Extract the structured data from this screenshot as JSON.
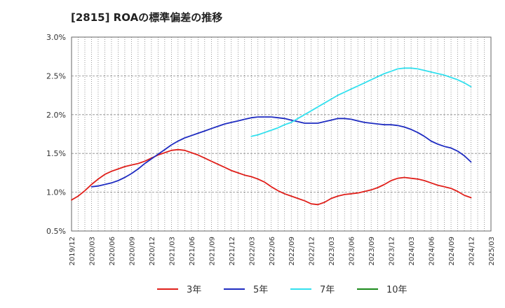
{
  "chart_data": {
    "type": "line",
    "title": "[2815]  ROAの標準偏差の推移",
    "xlabel": "",
    "ylabel": "",
    "ylim": [
      0.5,
      3.0
    ],
    "y_ticks": [
      "0.5%",
      "1.0%",
      "1.5%",
      "2.0%",
      "2.5%",
      "3.0%"
    ],
    "y_tick_values": [
      0.5,
      1.0,
      1.5,
      2.0,
      2.5,
      3.0
    ],
    "x_ticks": [
      "2019/12",
      "2020/03",
      "2020/06",
      "2020/09",
      "2020/12",
      "2021/03",
      "2021/06",
      "2021/09",
      "2021/12",
      "2022/03",
      "2022/06",
      "2022/09",
      "2022/12",
      "2023/03",
      "2023/06",
      "2023/09",
      "2023/12",
      "2024/03",
      "2024/06",
      "2024/09",
      "2024/12",
      "2025/03"
    ],
    "x_range": [
      "2019/12",
      "2025/03"
    ],
    "grid": true,
    "legend_position": "bottom",
    "series": [
      {
        "name": "3年",
        "color": "#e0201b",
        "points": [
          [
            "2019/12",
            0.9
          ],
          [
            "2020/01",
            0.95
          ],
          [
            "2020/02",
            1.02
          ],
          [
            "2020/03",
            1.1
          ],
          [
            "2020/04",
            1.17
          ],
          [
            "2020/05",
            1.23
          ],
          [
            "2020/06",
            1.27
          ],
          [
            "2020/07",
            1.3
          ],
          [
            "2020/08",
            1.33
          ],
          [
            "2020/09",
            1.35
          ],
          [
            "2020/10",
            1.37
          ],
          [
            "2020/11",
            1.4
          ],
          [
            "2020/12",
            1.44
          ],
          [
            "2021/01",
            1.48
          ],
          [
            "2021/02",
            1.51
          ],
          [
            "2021/03",
            1.54
          ],
          [
            "2021/04",
            1.55
          ],
          [
            "2021/05",
            1.54
          ],
          [
            "2021/06",
            1.51
          ],
          [
            "2021/07",
            1.48
          ],
          [
            "2021/08",
            1.44
          ],
          [
            "2021/09",
            1.4
          ],
          [
            "2021/10",
            1.36
          ],
          [
            "2021/11",
            1.32
          ],
          [
            "2021/12",
            1.28
          ],
          [
            "2022/01",
            1.25
          ],
          [
            "2022/02",
            1.22
          ],
          [
            "2022/03",
            1.2
          ],
          [
            "2022/04",
            1.17
          ],
          [
            "2022/05",
            1.13
          ],
          [
            "2022/06",
            1.07
          ],
          [
            "2022/07",
            1.02
          ],
          [
            "2022/08",
            0.98
          ],
          [
            "2022/09",
            0.95
          ],
          [
            "2022/10",
            0.92
          ],
          [
            "2022/11",
            0.89
          ],
          [
            "2022/12",
            0.85
          ],
          [
            "2023/01",
            0.84
          ],
          [
            "2023/02",
            0.87
          ],
          [
            "2023/03",
            0.92
          ],
          [
            "2023/04",
            0.95
          ],
          [
            "2023/05",
            0.97
          ],
          [
            "2023/06",
            0.98
          ],
          [
            "2023/07",
            0.99
          ],
          [
            "2023/08",
            1.01
          ],
          [
            "2023/09",
            1.03
          ],
          [
            "2023/10",
            1.06
          ],
          [
            "2023/11",
            1.1
          ],
          [
            "2023/12",
            1.15
          ],
          [
            "2024/01",
            1.18
          ],
          [
            "2024/02",
            1.19
          ],
          [
            "2024/03",
            1.18
          ],
          [
            "2024/04",
            1.17
          ],
          [
            "2024/05",
            1.15
          ],
          [
            "2024/06",
            1.12
          ],
          [
            "2024/07",
            1.09
          ],
          [
            "2024/08",
            1.07
          ],
          [
            "2024/09",
            1.05
          ],
          [
            "2024/10",
            1.01
          ],
          [
            "2024/11",
            0.96
          ],
          [
            "2024/12",
            0.93
          ]
        ]
      },
      {
        "name": "5年",
        "color": "#1f2cc1",
        "points": [
          [
            "2020/03",
            1.07
          ],
          [
            "2020/04",
            1.08
          ],
          [
            "2020/05",
            1.1
          ],
          [
            "2020/06",
            1.12
          ],
          [
            "2020/07",
            1.15
          ],
          [
            "2020/08",
            1.19
          ],
          [
            "2020/09",
            1.24
          ],
          [
            "2020/10",
            1.3
          ],
          [
            "2020/11",
            1.37
          ],
          [
            "2020/12",
            1.43
          ],
          [
            "2021/01",
            1.49
          ],
          [
            "2021/02",
            1.55
          ],
          [
            "2021/03",
            1.61
          ],
          [
            "2021/04",
            1.66
          ],
          [
            "2021/05",
            1.7
          ],
          [
            "2021/06",
            1.73
          ],
          [
            "2021/07",
            1.76
          ],
          [
            "2021/08",
            1.79
          ],
          [
            "2021/09",
            1.82
          ],
          [
            "2021/10",
            1.85
          ],
          [
            "2021/11",
            1.88
          ],
          [
            "2021/12",
            1.9
          ],
          [
            "2022/01",
            1.92
          ],
          [
            "2022/02",
            1.94
          ],
          [
            "2022/03",
            1.96
          ],
          [
            "2022/04",
            1.97
          ],
          [
            "2022/05",
            1.97
          ],
          [
            "2022/06",
            1.97
          ],
          [
            "2022/07",
            1.96
          ],
          [
            "2022/08",
            1.95
          ],
          [
            "2022/09",
            1.93
          ],
          [
            "2022/10",
            1.91
          ],
          [
            "2022/11",
            1.89
          ],
          [
            "2022/12",
            1.89
          ],
          [
            "2023/01",
            1.89
          ],
          [
            "2023/02",
            1.91
          ],
          [
            "2023/03",
            1.93
          ],
          [
            "2023/04",
            1.95
          ],
          [
            "2023/05",
            1.95
          ],
          [
            "2023/06",
            1.94
          ],
          [
            "2023/07",
            1.92
          ],
          [
            "2023/08",
            1.9
          ],
          [
            "2023/09",
            1.89
          ],
          [
            "2023/10",
            1.88
          ],
          [
            "2023/11",
            1.87
          ],
          [
            "2023/12",
            1.87
          ],
          [
            "2024/01",
            1.86
          ],
          [
            "2024/02",
            1.84
          ],
          [
            "2024/03",
            1.81
          ],
          [
            "2024/04",
            1.77
          ],
          [
            "2024/05",
            1.72
          ],
          [
            "2024/06",
            1.66
          ],
          [
            "2024/07",
            1.62
          ],
          [
            "2024/08",
            1.59
          ],
          [
            "2024/09",
            1.57
          ],
          [
            "2024/10",
            1.53
          ],
          [
            "2024/11",
            1.47
          ],
          [
            "2024/12",
            1.39
          ]
        ]
      },
      {
        "name": "7年",
        "color": "#33e0ee",
        "points": [
          [
            "2022/03",
            1.72
          ],
          [
            "2022/04",
            1.74
          ],
          [
            "2022/05",
            1.77
          ],
          [
            "2022/06",
            1.8
          ],
          [
            "2022/07",
            1.83
          ],
          [
            "2022/08",
            1.87
          ],
          [
            "2022/09",
            1.9
          ],
          [
            "2022/10",
            1.95
          ],
          [
            "2022/11",
            2.0
          ],
          [
            "2022/12",
            2.05
          ],
          [
            "2023/01",
            2.1
          ],
          [
            "2023/02",
            2.15
          ],
          [
            "2023/03",
            2.2
          ],
          [
            "2023/04",
            2.25
          ],
          [
            "2023/05",
            2.29
          ],
          [
            "2023/06",
            2.33
          ],
          [
            "2023/07",
            2.37
          ],
          [
            "2023/08",
            2.41
          ],
          [
            "2023/09",
            2.45
          ],
          [
            "2023/10",
            2.49
          ],
          [
            "2023/11",
            2.53
          ],
          [
            "2023/12",
            2.56
          ],
          [
            "2024/01",
            2.59
          ],
          [
            "2024/02",
            2.6
          ],
          [
            "2024/03",
            2.6
          ],
          [
            "2024/04",
            2.59
          ],
          [
            "2024/05",
            2.57
          ],
          [
            "2024/06",
            2.55
          ],
          [
            "2024/07",
            2.53
          ],
          [
            "2024/08",
            2.51
          ],
          [
            "2024/09",
            2.48
          ],
          [
            "2024/10",
            2.45
          ],
          [
            "2024/11",
            2.41
          ],
          [
            "2024/12",
            2.36
          ]
        ]
      },
      {
        "name": "10年",
        "color": "#1a8a1a",
        "points": []
      }
    ]
  }
}
